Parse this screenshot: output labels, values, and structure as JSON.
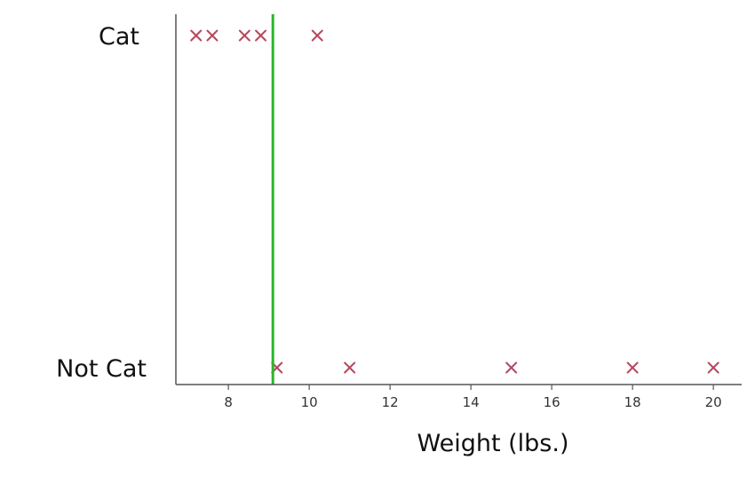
{
  "chart_data": {
    "type": "scatter",
    "xlabel": "Weight (lbs.)",
    "ylabel": "",
    "title": "",
    "categories": [
      "Not Cat",
      "Cat"
    ],
    "xlim": [
      6.7,
      20.7
    ],
    "xticks": [
      "8",
      "10",
      "12",
      "14",
      "16",
      "18",
      "20"
    ],
    "grid": false,
    "series": [
      {
        "points": [
          {
            "x": 7.2,
            "y": "Cat"
          },
          {
            "x": 7.6,
            "y": "Cat"
          },
          {
            "x": 8.4,
            "y": "Cat"
          },
          {
            "x": 8.8,
            "y": "Cat"
          },
          {
            "x": 10.2,
            "y": "Cat"
          },
          {
            "x": 9.2,
            "y": "Not Cat"
          },
          {
            "x": 11.0,
            "y": "Not Cat"
          },
          {
            "x": 15.0,
            "y": "Not Cat"
          },
          {
            "x": 18.0,
            "y": "Not Cat"
          },
          {
            "x": 20.0,
            "y": "Not Cat"
          }
        ]
      }
    ],
    "threshold": {
      "x": 9.1
    },
    "colors": {
      "marker": "#b4485e",
      "threshold": "#2db52d",
      "axis": "#555555"
    }
  }
}
